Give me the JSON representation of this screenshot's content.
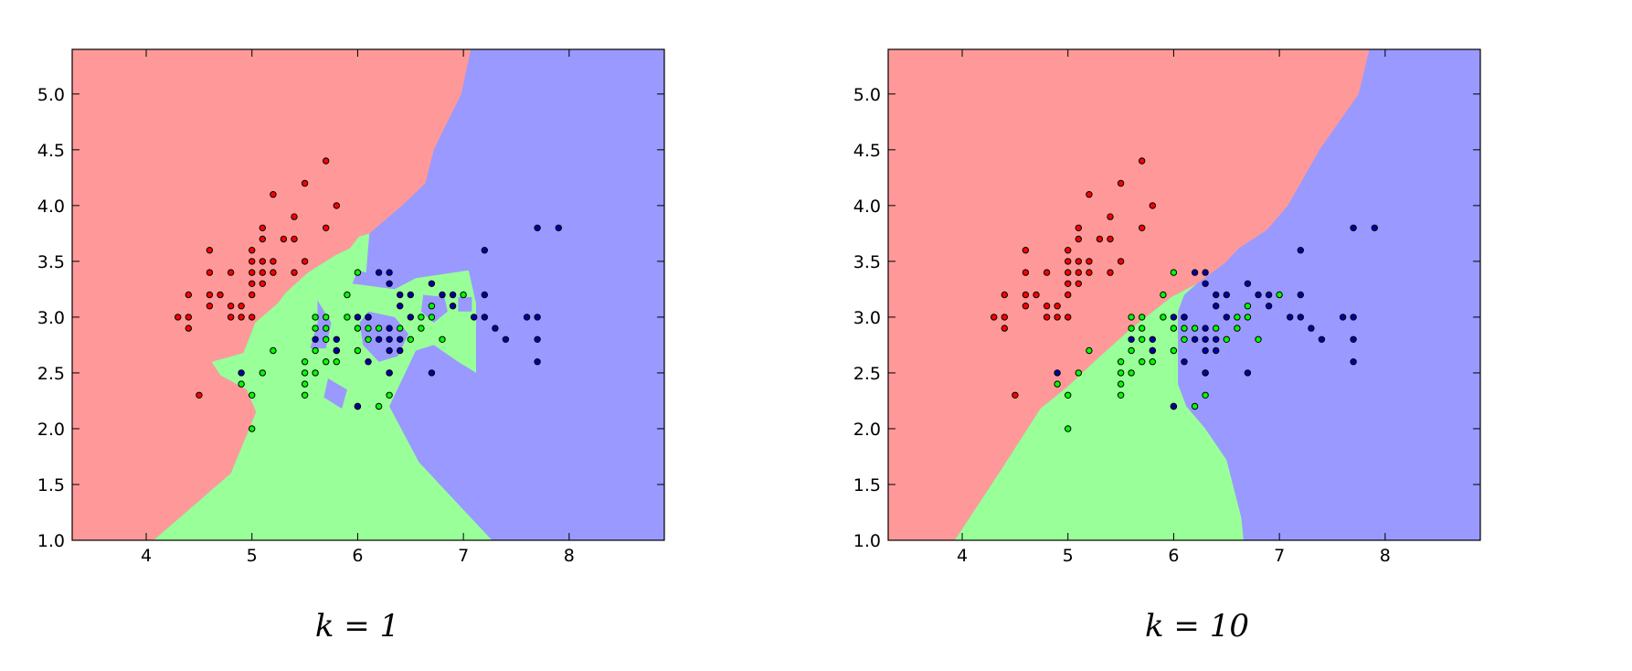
{
  "colors": {
    "region_class0": "#ff9999",
    "region_class1": "#99ff99",
    "region_class2": "#9999ff",
    "point_class0": "#ff0000",
    "point_class1": "#00ff00",
    "point_class2": "#0000aa"
  },
  "captions": [
    "k = 1",
    "k = 10"
  ],
  "chart_data": [
    {
      "type": "scatter",
      "title": "",
      "caption": "k = 1",
      "xlabel": "",
      "ylabel": "",
      "xlim": [
        3.3,
        8.9
      ],
      "ylim": [
        1.0,
        5.4
      ],
      "xticks": [
        4,
        5,
        6,
        7,
        8
      ],
      "yticks": [
        1.0,
        1.5,
        2.0,
        2.5,
        3.0,
        3.5,
        4.0,
        4.5,
        5.0
      ],
      "grid": false,
      "background": "decision regions (red, green, blue)",
      "series": [
        {
          "class": 0,
          "points": [
            [
              4.3,
              3.0
            ],
            [
              4.4,
              3.0
            ],
            [
              4.4,
              3.2
            ],
            [
              4.4,
              2.9
            ],
            [
              4.5,
              2.3
            ],
            [
              4.6,
              3.1
            ],
            [
              4.6,
              3.4
            ],
            [
              4.6,
              3.6
            ],
            [
              4.6,
              3.2
            ],
            [
              4.7,
              3.2
            ],
            [
              4.8,
              3.4
            ],
            [
              4.8,
              3.0
            ],
            [
              4.8,
              3.1
            ],
            [
              4.9,
              3.1
            ],
            [
              4.9,
              3.0
            ],
            [
              5.0,
              3.0
            ],
            [
              5.0,
              3.3
            ],
            [
              5.0,
              3.4
            ],
            [
              5.0,
              3.5
            ],
            [
              5.0,
              3.6
            ],
            [
              5.0,
              3.2
            ],
            [
              5.1,
              3.5
            ],
            [
              5.1,
              3.8
            ],
            [
              5.1,
              3.3
            ],
            [
              5.1,
              3.7
            ],
            [
              5.1,
              3.4
            ],
            [
              5.2,
              3.5
            ],
            [
              5.2,
              3.4
            ],
            [
              5.2,
              4.1
            ],
            [
              5.3,
              3.7
            ],
            [
              5.4,
              3.9
            ],
            [
              5.4,
              3.7
            ],
            [
              5.4,
              3.4
            ],
            [
              5.5,
              4.2
            ],
            [
              5.5,
              3.5
            ],
            [
              5.7,
              4.4
            ],
            [
              5.7,
              3.8
            ],
            [
              5.8,
              4.0
            ]
          ]
        },
        {
          "class": 1,
          "points": [
            [
              4.9,
              2.4
            ],
            [
              5.0,
              2.0
            ],
            [
              5.0,
              2.3
            ],
            [
              5.1,
              2.5
            ],
            [
              5.2,
              2.7
            ],
            [
              5.5,
              2.3
            ],
            [
              5.5,
              2.4
            ],
            [
              5.5,
              2.5
            ],
            [
              5.5,
              2.6
            ],
            [
              5.6,
              2.5
            ],
            [
              5.6,
              2.7
            ],
            [
              5.6,
              2.9
            ],
            [
              5.6,
              3.0
            ],
            [
              5.7,
              2.6
            ],
            [
              5.7,
              2.8
            ],
            [
              5.7,
              2.9
            ],
            [
              5.7,
              3.0
            ],
            [
              5.8,
              2.6
            ],
            [
              5.8,
              2.7
            ],
            [
              5.9,
              3.0
            ],
            [
              5.9,
              3.2
            ],
            [
              6.0,
              2.2
            ],
            [
              6.0,
              2.7
            ],
            [
              6.0,
              2.9
            ],
            [
              6.0,
              3.4
            ],
            [
              6.1,
              2.8
            ],
            [
              6.1,
              2.9
            ],
            [
              6.1,
              3.0
            ],
            [
              6.2,
              2.2
            ],
            [
              6.2,
              2.9
            ],
            [
              6.3,
              2.3
            ],
            [
              6.3,
              2.5
            ],
            [
              6.4,
              2.9
            ],
            [
              6.5,
              2.8
            ],
            [
              6.6,
              2.9
            ],
            [
              6.6,
              3.0
            ],
            [
              6.7,
              3.0
            ],
            [
              6.7,
              3.1
            ],
            [
              6.8,
              2.8
            ],
            [
              7.0,
              3.2
            ]
          ]
        },
        {
          "class": 2,
          "points": [
            [
              4.9,
              2.5
            ],
            [
              5.6,
              2.8
            ],
            [
              5.8,
              2.7
            ],
            [
              5.8,
              2.8
            ],
            [
              6.0,
              2.2
            ],
            [
              6.0,
              3.0
            ],
            [
              6.1,
              2.6
            ],
            [
              6.1,
              3.0
            ],
            [
              6.2,
              2.8
            ],
            [
              6.2,
              3.4
            ],
            [
              6.3,
              2.7
            ],
            [
              6.3,
              2.8
            ],
            [
              6.3,
              2.9
            ],
            [
              6.3,
              3.3
            ],
            [
              6.3,
              3.4
            ],
            [
              6.3,
              2.5
            ],
            [
              6.4,
              2.7
            ],
            [
              6.4,
              2.8
            ],
            [
              6.4,
              3.1
            ],
            [
              6.4,
              3.2
            ],
            [
              6.5,
              3.0
            ],
            [
              6.5,
              3.2
            ],
            [
              6.7,
              2.5
            ],
            [
              6.7,
              3.3
            ],
            [
              6.8,
              3.2
            ],
            [
              6.9,
              3.1
            ],
            [
              6.9,
              3.2
            ],
            [
              7.1,
              3.0
            ],
            [
              7.2,
              3.0
            ],
            [
              7.2,
              3.2
            ],
            [
              7.2,
              3.6
            ],
            [
              7.3,
              2.9
            ],
            [
              7.4,
              2.8
            ],
            [
              7.6,
              3.0
            ],
            [
              7.7,
              2.6
            ],
            [
              7.7,
              2.8
            ],
            [
              7.7,
              3.0
            ],
            [
              7.7,
              3.8
            ],
            [
              7.9,
              3.8
            ]
          ]
        }
      ]
    },
    {
      "type": "scatter",
      "title": "",
      "caption": "k = 10",
      "xlabel": "",
      "ylabel": "",
      "xlim": [
        3.3,
        8.9
      ],
      "ylim": [
        1.0,
        5.4
      ],
      "xticks": [
        4,
        5,
        6,
        7,
        8
      ],
      "yticks": [
        1.0,
        1.5,
        2.0,
        2.5,
        3.0,
        3.5,
        4.0,
        4.5,
        5.0
      ],
      "grid": false,
      "background": "decision regions (red, green, blue)",
      "series": [
        {
          "class": 0,
          "points": [
            [
              4.3,
              3.0
            ],
            [
              4.4,
              3.0
            ],
            [
              4.4,
              3.2
            ],
            [
              4.4,
              2.9
            ],
            [
              4.5,
              2.3
            ],
            [
              4.6,
              3.1
            ],
            [
              4.6,
              3.4
            ],
            [
              4.6,
              3.6
            ],
            [
              4.6,
              3.2
            ],
            [
              4.7,
              3.2
            ],
            [
              4.8,
              3.4
            ],
            [
              4.8,
              3.0
            ],
            [
              4.8,
              3.1
            ],
            [
              4.9,
              3.1
            ],
            [
              4.9,
              3.0
            ],
            [
              5.0,
              3.0
            ],
            [
              5.0,
              3.3
            ],
            [
              5.0,
              3.4
            ],
            [
              5.0,
              3.5
            ],
            [
              5.0,
              3.6
            ],
            [
              5.0,
              3.2
            ],
            [
              5.1,
              3.5
            ],
            [
              5.1,
              3.8
            ],
            [
              5.1,
              3.3
            ],
            [
              5.1,
              3.7
            ],
            [
              5.1,
              3.4
            ],
            [
              5.2,
              3.5
            ],
            [
              5.2,
              3.4
            ],
            [
              5.2,
              4.1
            ],
            [
              5.3,
              3.7
            ],
            [
              5.4,
              3.9
            ],
            [
              5.4,
              3.7
            ],
            [
              5.4,
              3.4
            ],
            [
              5.5,
              4.2
            ],
            [
              5.5,
              3.5
            ],
            [
              5.7,
              4.4
            ],
            [
              5.7,
              3.8
            ],
            [
              5.8,
              4.0
            ]
          ]
        },
        {
          "class": 1,
          "points": [
            [
              4.9,
              2.4
            ],
            [
              5.0,
              2.0
            ],
            [
              5.0,
              2.3
            ],
            [
              5.1,
              2.5
            ],
            [
              5.2,
              2.7
            ],
            [
              5.5,
              2.3
            ],
            [
              5.5,
              2.4
            ],
            [
              5.5,
              2.5
            ],
            [
              5.5,
              2.6
            ],
            [
              5.6,
              2.5
            ],
            [
              5.6,
              2.7
            ],
            [
              5.6,
              2.9
            ],
            [
              5.6,
              3.0
            ],
            [
              5.7,
              2.6
            ],
            [
              5.7,
              2.8
            ],
            [
              5.7,
              2.9
            ],
            [
              5.7,
              3.0
            ],
            [
              5.8,
              2.6
            ],
            [
              5.8,
              2.7
            ],
            [
              5.9,
              3.0
            ],
            [
              5.9,
              3.2
            ],
            [
              6.0,
              2.2
            ],
            [
              6.0,
              2.7
            ],
            [
              6.0,
              2.9
            ],
            [
              6.0,
              3.4
            ],
            [
              6.1,
              2.8
            ],
            [
              6.1,
              2.9
            ],
            [
              6.1,
              3.0
            ],
            [
              6.2,
              2.2
            ],
            [
              6.2,
              2.9
            ],
            [
              6.3,
              2.3
            ],
            [
              6.3,
              2.5
            ],
            [
              6.4,
              2.9
            ],
            [
              6.5,
              2.8
            ],
            [
              6.6,
              2.9
            ],
            [
              6.6,
              3.0
            ],
            [
              6.7,
              3.0
            ],
            [
              6.7,
              3.1
            ],
            [
              6.8,
              2.8
            ],
            [
              7.0,
              3.2
            ]
          ]
        },
        {
          "class": 2,
          "points": [
            [
              4.9,
              2.5
            ],
            [
              5.6,
              2.8
            ],
            [
              5.8,
              2.7
            ],
            [
              5.8,
              2.8
            ],
            [
              6.0,
              2.2
            ],
            [
              6.0,
              3.0
            ],
            [
              6.1,
              2.6
            ],
            [
              6.1,
              3.0
            ],
            [
              6.2,
              2.8
            ],
            [
              6.2,
              3.4
            ],
            [
              6.3,
              2.7
            ],
            [
              6.3,
              2.8
            ],
            [
              6.3,
              2.9
            ],
            [
              6.3,
              3.3
            ],
            [
              6.3,
              3.4
            ],
            [
              6.3,
              2.5
            ],
            [
              6.4,
              2.7
            ],
            [
              6.4,
              2.8
            ],
            [
              6.4,
              3.1
            ],
            [
              6.4,
              3.2
            ],
            [
              6.5,
              3.0
            ],
            [
              6.5,
              3.2
            ],
            [
              6.7,
              2.5
            ],
            [
              6.7,
              3.3
            ],
            [
              6.8,
              3.2
            ],
            [
              6.9,
              3.1
            ],
            [
              6.9,
              3.2
            ],
            [
              7.1,
              3.0
            ],
            [
              7.2,
              3.0
            ],
            [
              7.2,
              3.2
            ],
            [
              7.2,
              3.6
            ],
            [
              7.3,
              2.9
            ],
            [
              7.4,
              2.8
            ],
            [
              7.6,
              3.0
            ],
            [
              7.7,
              2.6
            ],
            [
              7.7,
              2.8
            ],
            [
              7.7,
              3.0
            ],
            [
              7.7,
              3.8
            ],
            [
              7.9,
              3.8
            ]
          ]
        }
      ]
    }
  ]
}
